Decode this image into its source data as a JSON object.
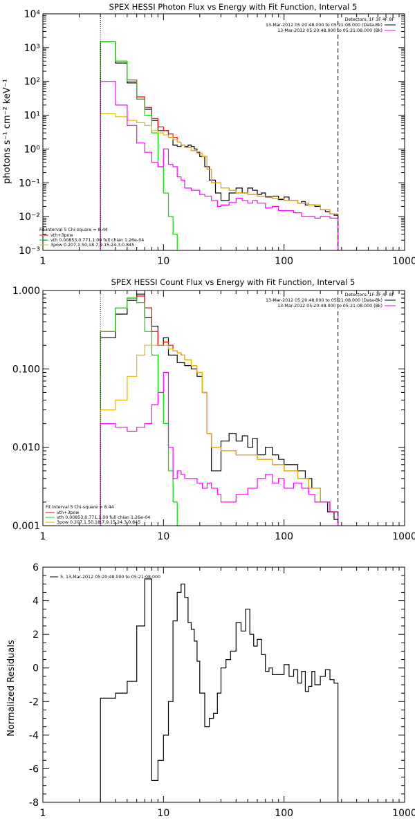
{
  "chart_data": [
    {
      "type": "line",
      "title": "SPEX HESSI Photon Flux vs Energy with Fit Function, Interval 5",
      "ylabel": "photons s⁻¹ cm⁻² keV⁻¹",
      "xlabel": "",
      "xscale": "log",
      "yscale": "log",
      "xlim": [
        1,
        1000
      ],
      "ylim": [
        0.001,
        10000
      ],
      "x_ticks": [
        "1",
        "10",
        "100",
        "1000"
      ],
      "y_ticks": [
        "10⁻³",
        "10⁻²",
        "10⁻¹",
        "10⁰",
        "10¹",
        "10²",
        "10³",
        "10⁴"
      ],
      "vlines": [
        {
          "x": 3,
          "style": "dotted"
        },
        {
          "x": 280,
          "style": "dashed"
        }
      ],
      "legend_top_right": [
        "Detectors: 1F 3F 4F 8F",
        "13-Mar-2012 05:20:48.000 to 05:21:08.000 (Data-Bk)",
        "13-Mar-2012 05:20:48.000 to 05:21:08.000 (Bk)"
      ],
      "legend_bottom_left": [
        "Fit Interval 5   Chi-square = 8.44",
        "vth+3pow",
        "vth 0.00853,0.771,1.00  full chian 1.26e-04",
        "3pow 0.207,1.50,18.7,9.15,24.3,0.845"
      ],
      "series": [
        {
          "name": "13-Mar-2012 05:20:48.000 to 05:21:08.000 (Data-Bk)",
          "color": "#000000",
          "x": [
            3,
            4,
            5,
            6,
            7,
            8,
            9,
            10,
            11,
            12,
            13,
            14,
            15,
            16,
            17,
            18,
            19,
            20,
            22,
            24,
            27,
            30,
            35,
            40,
            45,
            50,
            55,
            60,
            65,
            70,
            80,
            90,
            100,
            110,
            120,
            130,
            140,
            150,
            160,
            180,
            200,
            220,
            240,
            260,
            280
          ],
          "y": [
            1500,
            350,
            90,
            30,
            15,
            7,
            3.5,
            3.5,
            2.2,
            1.3,
            1.2,
            1.3,
            1.2,
            1.3,
            1.2,
            1.0,
            0.8,
            0.6,
            0.3,
            0.12,
            0.05,
            0.03,
            0.05,
            0.07,
            0.05,
            0.07,
            0.06,
            0.045,
            0.05,
            0.038,
            0.04,
            0.032,
            0.038,
            0.03,
            0.03,
            0.025,
            0.028,
            0.022,
            0.022,
            0.02,
            0.016,
            0.014,
            0.012,
            0.011,
            0.01
          ]
        },
        {
          "name": "vth+3pow",
          "color": "#ff0000",
          "x": [
            3,
            4,
            5,
            6,
            7,
            8,
            9,
            10,
            11,
            12,
            13,
            14,
            15,
            17,
            19,
            21,
            23,
            25,
            30,
            35,
            40,
            50,
            60,
            80,
            100,
            130,
            160,
            200,
            240,
            280
          ],
          "y": [
            1500,
            400,
            110,
            35,
            17,
            8,
            4.5,
            3.5,
            2.8,
            2.2,
            1.6,
            1.3,
            1.1,
            0.9,
            0.75,
            0.6,
            0.25,
            0.1,
            0.07,
            0.06,
            0.05,
            0.045,
            0.04,
            0.034,
            0.03,
            0.025,
            0.022,
            0.016,
            0.012,
            0.01
          ]
        },
        {
          "name": "vth 0.00853,0.771,1.00  full chian 1.26e-04",
          "color": "#00dd00",
          "x": [
            3,
            4,
            5,
            6,
            7,
            8,
            9,
            10,
            11,
            12,
            13
          ],
          "y": [
            1500,
            400,
            100,
            30,
            10,
            3,
            0.3,
            0.05,
            0.01,
            0.003,
            0.001
          ]
        },
        {
          "name": "3pow 0.207,1.50,18.7,9.15,24.3,0.845",
          "color": "#ddbb00",
          "x": [
            3,
            4,
            5,
            6,
            7,
            8,
            9,
            10,
            11,
            12,
            13,
            14,
            15,
            17,
            19,
            21,
            23,
            25,
            30,
            35,
            40,
            50,
            60,
            80,
            100,
            130,
            160,
            200,
            240,
            280
          ],
          "y": [
            11,
            9,
            7,
            6,
            5,
            3.5,
            3.0,
            2.6,
            2.2,
            1.9,
            1.6,
            1.3,
            1.1,
            0.9,
            0.75,
            0.6,
            0.25,
            0.1,
            0.07,
            0.06,
            0.05,
            0.045,
            0.04,
            0.034,
            0.03,
            0.025,
            0.022,
            0.016,
            0.012,
            0.01
          ]
        },
        {
          "name": "13-Mar-2012 05:20:48.000 to 05:21:08.000 (Bk)",
          "color": "#ff00ff",
          "x": [
            3,
            4,
            5,
            6,
            7,
            8,
            9,
            10,
            11,
            12,
            13,
            14,
            15,
            16,
            17,
            18,
            20,
            22,
            25,
            28,
            30,
            35,
            40,
            45,
            50,
            55,
            60,
            70,
            80,
            90,
            100,
            120,
            140,
            160,
            180,
            200,
            240,
            280
          ],
          "y": [
            100,
            20,
            5,
            1.5,
            0.8,
            0.4,
            0.3,
            1.0,
            0.35,
            0.3,
            0.15,
            0.12,
            0.07,
            0.07,
            0.06,
            0.06,
            0.045,
            0.04,
            0.03,
            0.02,
            0.022,
            0.026,
            0.035,
            0.03,
            0.025,
            0.03,
            0.025,
            0.018,
            0.02,
            0.015,
            0.015,
            0.013,
            0.01,
            0.01,
            0.009,
            0.01,
            0.009,
            0.008
          ]
        }
      ]
    },
    {
      "type": "line",
      "title": "SPEX HESSI Count Flux vs Energy with Fit Function, Interval 5",
      "ylabel": "",
      "xlabel": "",
      "xscale": "log",
      "yscale": "log",
      "xlim": [
        1,
        1000
      ],
      "ylim": [
        0.001,
        1.0
      ],
      "x_ticks": [
        "1",
        "10",
        "100",
        "1000"
      ],
      "y_ticks": [
        "0.001",
        "0.010",
        "0.100",
        "1.000"
      ],
      "vlines": [
        {
          "x": 3,
          "style": "dotted"
        },
        {
          "x": 280,
          "style": "dashed"
        }
      ],
      "legend_top_right": [
        "Detectors: 1F 3F 4F 8F",
        "13-Mar-2012 05:20:48.000 to 05:21:08.000 (Data-Bk)",
        "13-Mar-2012 05:20:48.000 to 05:21:08.000 (Bk)"
      ],
      "legend_bottom_left": [
        "Fit Interval 5   Chi-square = 8.44",
        "vth+3pow",
        "vth 0.00853,0.771,1.00  full chian 1.26e-04",
        "3pow 0.207,1.50,18.7,9.15,24.3,0.845"
      ],
      "series": [
        {
          "name": "13-Mar-2012 05:20:48.000 to 05:21:08.000 (Data-Bk)",
          "color": "#000000",
          "x": [
            3,
            4,
            5,
            6,
            7,
            8,
            9,
            10,
            11,
            12,
            13,
            14,
            15,
            17,
            19,
            21,
            23,
            25,
            28,
            30,
            35,
            40,
            45,
            50,
            55,
            60,
            70,
            80,
            90,
            100,
            110,
            130,
            150,
            170,
            200,
            230,
            260,
            280
          ],
          "y": [
            0.25,
            0.5,
            0.75,
            0.9,
            0.45,
            0.35,
            0.2,
            0.25,
            0.15,
            0.15,
            0.12,
            0.12,
            0.11,
            0.1,
            0.08,
            0.05,
            0.015,
            0.005,
            0.005,
            0.012,
            0.015,
            0.012,
            0.014,
            0.01,
            0.013,
            0.008,
            0.01,
            0.008,
            0.007,
            0.006,
            0.006,
            0.005,
            0.004,
            0.003,
            0.002,
            0.0015,
            0.0012,
            0.001
          ]
        },
        {
          "name": "vth+3pow",
          "color": "#ff0000",
          "x": [
            3,
            4,
            5,
            6,
            7,
            8,
            9,
            10,
            11,
            12,
            13,
            14,
            15,
            17,
            19,
            21,
            23,
            25,
            30,
            35,
            40,
            50,
            60,
            80,
            100,
            130,
            160,
            200,
            240,
            280
          ],
          "y": [
            0.3,
            0.6,
            0.8,
            0.85,
            0.6,
            0.3,
            0.2,
            0.22,
            0.2,
            0.17,
            0.16,
            0.15,
            0.13,
            0.11,
            0.09,
            0.05,
            0.015,
            0.01,
            0.009,
            0.009,
            0.008,
            0.008,
            0.007,
            0.006,
            0.005,
            0.004,
            0.003,
            0.002,
            0.0015,
            0.0012
          ]
        },
        {
          "name": "vth 0.00853,0.771,1.00  full chian 1.26e-04",
          "color": "#00dd00",
          "x": [
            3,
            4,
            5,
            6,
            7,
            8,
            9,
            10,
            11,
            12,
            13,
            14
          ],
          "y": [
            0.3,
            0.6,
            0.8,
            0.7,
            0.3,
            0.15,
            0.05,
            0.02,
            0.005,
            0.002,
            0.001,
            0.001
          ]
        },
        {
          "name": "3pow 0.207,1.50,18.7,9.15,24.3,0.845",
          "color": "#ddbb00",
          "x": [
            3,
            4,
            5,
            6,
            7,
            8,
            9,
            10,
            11,
            12,
            13,
            14,
            15,
            17,
            19,
            21,
            23,
            25,
            30,
            35,
            40,
            50,
            60,
            80,
            100,
            130,
            160,
            200,
            240,
            280
          ],
          "y": [
            0.03,
            0.04,
            0.08,
            0.15,
            0.2,
            0.2,
            0.2,
            0.2,
            0.18,
            0.17,
            0.16,
            0.15,
            0.13,
            0.11,
            0.09,
            0.05,
            0.015,
            0.01,
            0.009,
            0.009,
            0.008,
            0.008,
            0.007,
            0.006,
            0.005,
            0.004,
            0.003,
            0.002,
            0.0015,
            0.0012
          ]
        },
        {
          "name": "13-Mar-2012 05:20:48.000 to 05:21:08.000 (Bk)",
          "color": "#ff00ff",
          "x": [
            3,
            4,
            5,
            6,
            7,
            8,
            9,
            10,
            11,
            12,
            13,
            14,
            15,
            17,
            19,
            21,
            23,
            25,
            28,
            30,
            35,
            40,
            50,
            60,
            70,
            80,
            90,
            100,
            120,
            140,
            160,
            180,
            200,
            240,
            280
          ],
          "y": [
            0.02,
            0.018,
            0.016,
            0.018,
            0.02,
            0.035,
            0.05,
            0.09,
            0.01,
            0.004,
            0.005,
            0.0045,
            0.004,
            0.004,
            0.0035,
            0.003,
            0.0035,
            0.003,
            0.0025,
            0.002,
            0.002,
            0.0025,
            0.003,
            0.004,
            0.0045,
            0.0035,
            0.004,
            0.003,
            0.0035,
            0.003,
            0.0025,
            0.002,
            0.002,
            0.0015,
            0.001
          ]
        }
      ]
    },
    {
      "type": "line",
      "title": "",
      "ylabel": "Normalized Residuals",
      "xlabel": "",
      "xscale": "log",
      "yscale": "linear",
      "xlim": [
        1,
        1000
      ],
      "ylim": [
        -8,
        6
      ],
      "x_ticks": [
        "1",
        "10",
        "100",
        "1000"
      ],
      "y_ticks": [
        "-8",
        "-6",
        "-4",
        "-2",
        "0",
        "2",
        "4",
        "6"
      ],
      "legend_top_left": [
        "5, 13-Mar-2012 05:20:48.000 to 05:21:08.000"
      ],
      "series": [
        {
          "name": "5, 13-Mar-2012 05:20:48.000 to 05:21:08.000",
          "color": "#000000",
          "x": [
            3,
            4,
            5,
            6,
            7,
            8,
            9,
            10,
            11,
            12,
            13,
            14,
            15,
            16,
            17,
            18,
            19,
            20,
            22,
            24,
            26,
            28,
            30,
            33,
            36,
            40,
            44,
            48,
            52,
            56,
            60,
            65,
            70,
            75,
            80,
            90,
            100,
            110,
            120,
            130,
            140,
            150,
            160,
            170,
            180,
            200,
            220,
            240,
            260,
            280
          ],
          "y": [
            -1.8,
            -1.5,
            -0.8,
            2.5,
            5.3,
            -6.7,
            -5.5,
            -4,
            -2,
            2.8,
            4.5,
            5,
            4.2,
            2.7,
            2.3,
            1.6,
            0.4,
            -1.5,
            -3.5,
            -3.0,
            -2.7,
            -1.5,
            0.0,
            0.5,
            1.0,
            2.7,
            2.2,
            3.5,
            2.0,
            1.3,
            1.7,
            0.8,
            -0.2,
            0.0,
            -0.4,
            -0.4,
            0.2,
            -0.5,
            -0.1,
            -0.9,
            -0.2,
            -1.4,
            -1.1,
            -0.2,
            -1.0,
            -0.5,
            -0.1,
            -0.7,
            -0.9,
            -1.0
          ]
        }
      ]
    }
  ]
}
